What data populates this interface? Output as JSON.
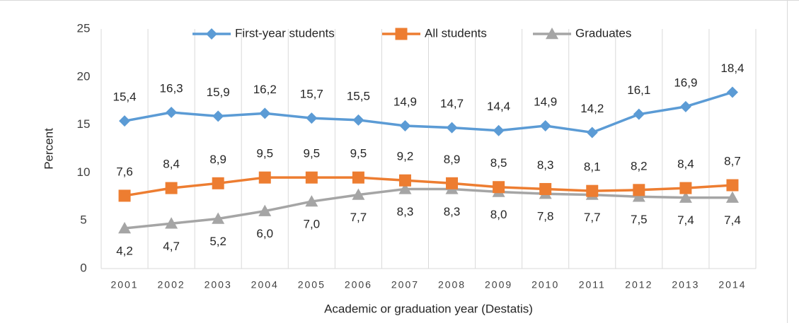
{
  "chart_data": {
    "type": "line",
    "title": "",
    "xlabel": "Academic or graduation year (Destatis)",
    "ylabel": "Percent",
    "ylim": [
      0,
      25
    ],
    "yticks": [
      0,
      5,
      10,
      15,
      20,
      25
    ],
    "grid": "vertical",
    "legend_position": "top",
    "categories": [
      "2001",
      "2002",
      "2003",
      "2004",
      "2005",
      "2006",
      "2007",
      "2008",
      "2009",
      "2010",
      "2011",
      "2012",
      "2013",
      "2014"
    ],
    "series": [
      {
        "name": "First-year students",
        "color": "#5b9bd5",
        "marker": "diamond",
        "label_position": "above",
        "values": [
          15.4,
          16.3,
          15.9,
          16.2,
          15.7,
          15.5,
          14.9,
          14.7,
          14.4,
          14.9,
          14.2,
          16.1,
          16.9,
          18.4
        ],
        "labels": [
          "15,4",
          "16,3",
          "15,9",
          "16,2",
          "15,7",
          "15,5",
          "14,9",
          "14,7",
          "14,4",
          "14,9",
          "14,2",
          "16,1",
          "16,9",
          "18,4"
        ]
      },
      {
        "name": "All students",
        "color": "#ed7d31",
        "marker": "square",
        "label_position": "above",
        "values": [
          7.6,
          8.4,
          8.9,
          9.5,
          9.5,
          9.5,
          9.2,
          8.9,
          8.5,
          8.3,
          8.1,
          8.2,
          8.4,
          8.7
        ],
        "labels": [
          "7,6",
          "8,4",
          "8,9",
          "9,5",
          "9,5",
          "9,5",
          "9,2",
          "8,9",
          "8,5",
          "8,3",
          "8,1",
          "8,2",
          "8,4",
          "8,7"
        ]
      },
      {
        "name": "Graduates",
        "color": "#a5a5a5",
        "marker": "triangle",
        "label_position": "below",
        "values": [
          4.2,
          4.7,
          5.2,
          6.0,
          7.0,
          7.7,
          8.3,
          8.3,
          8.0,
          7.8,
          7.7,
          7.5,
          7.4,
          7.4
        ],
        "labels": [
          "4,2",
          "4,7",
          "5,2",
          "6,0",
          "7,0",
          "7,7",
          "8,3",
          "8,3",
          "8,0",
          "7,8",
          "7,7",
          "7,5",
          "7,4",
          "7,4"
        ]
      }
    ]
  }
}
